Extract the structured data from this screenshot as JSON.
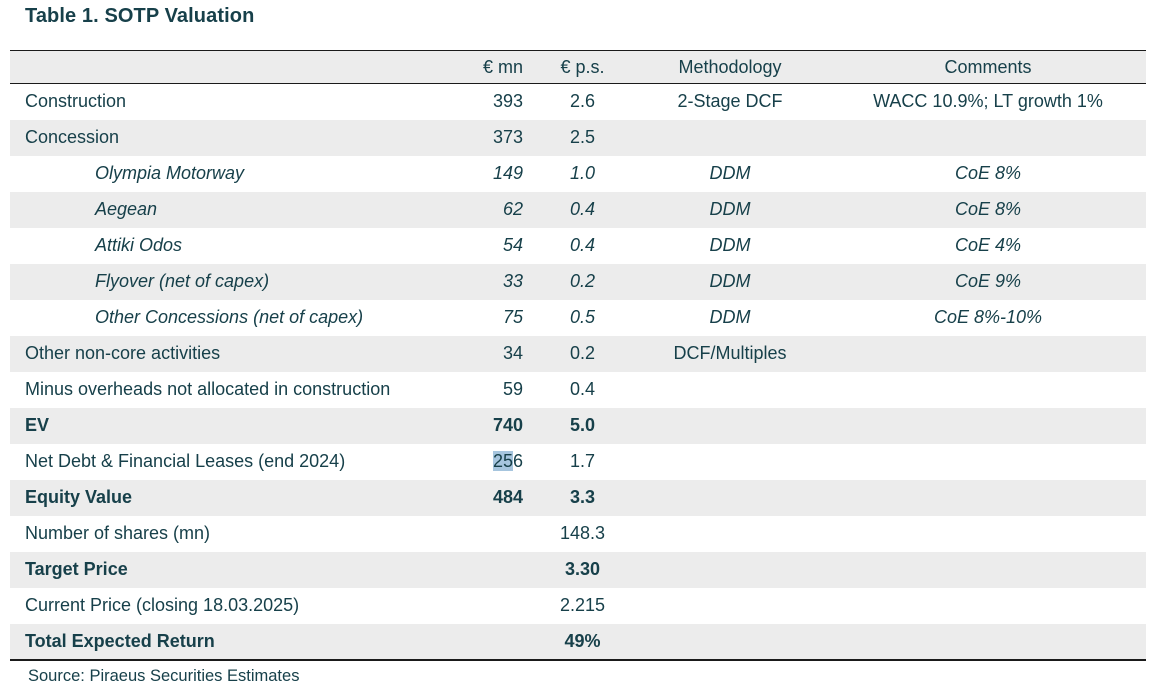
{
  "page": {
    "title": "Table 1. SOTP Valuation",
    "source_note": "Source: Piraeus Securities Estimates"
  },
  "colors": {
    "text": "#17404a",
    "row_shade": "#ececec",
    "selection_highlight": "#a6c5de",
    "border": "#1a1a1a"
  },
  "table": {
    "columns": [
      "",
      "€ mn",
      "€ p.s.",
      "Methodology",
      "Comments"
    ],
    "rows": [
      {
        "label": "Construction",
        "eur_mn": "393",
        "eur_ps": "2.6",
        "methodology": "2-Stage DCF",
        "comments": "WACC 10.9%; LT growth 1%"
      },
      {
        "label": "Concession",
        "eur_mn": "373",
        "eur_ps": "2.5",
        "methodology": "",
        "comments": ""
      },
      {
        "label": "Olympia Motorway",
        "eur_mn": "149",
        "eur_ps": "1.0",
        "methodology": "DDM",
        "comments": "CoE 8%",
        "italic": true,
        "indent": true
      },
      {
        "label": "Aegean",
        "eur_mn": "62",
        "eur_ps": "0.4",
        "methodology": "DDM",
        "comments": "CoE 8%",
        "italic": true,
        "indent": true
      },
      {
        "label": "Attiki Odos",
        "eur_mn": "54",
        "eur_ps": "0.4",
        "methodology": "DDM",
        "comments": "CoE 4%",
        "italic": true,
        "indent": true
      },
      {
        "label": "Flyover (net of capex)",
        "eur_mn": "33",
        "eur_ps": "0.2",
        "methodology": "DDM",
        "comments": "CoE 9%",
        "italic": true,
        "indent": true
      },
      {
        "label": "Other Concessions (net of capex)",
        "eur_mn": "75",
        "eur_ps": "0.5",
        "methodology": "DDM",
        "comments": "CoE 8%-10%",
        "italic": true,
        "indent": true
      },
      {
        "label": "Other non-core activities",
        "eur_mn": "34",
        "eur_ps": "0.2",
        "methodology": "DCF/Multiples",
        "comments": ""
      },
      {
        "label": "Minus overheads not allocated in construction",
        "eur_mn": "59",
        "eur_ps": "0.4",
        "methodology": "",
        "comments": ""
      },
      {
        "label": "EV",
        "eur_mn": "740",
        "eur_ps": "5.0",
        "methodology": "",
        "comments": "",
        "bold": true
      },
      {
        "label": "Net Debt & Financial Leases (end 2024)",
        "eur_mn": "256",
        "eur_ps": "1.7",
        "methodology": "",
        "comments": "",
        "selection": {
          "column": "eur_mn",
          "prefix_len": 2
        }
      },
      {
        "label": "Equity Value",
        "eur_mn": "484",
        "eur_ps": "3.3",
        "methodology": "",
        "comments": "",
        "bold": true
      },
      {
        "label": "Number of shares (mn)",
        "eur_mn": "",
        "eur_ps": "148.3",
        "methodology": "",
        "comments": ""
      },
      {
        "label": "Target Price",
        "eur_mn": "",
        "eur_ps": "3.30",
        "methodology": "",
        "comments": "",
        "bold": true
      },
      {
        "label": "Current Price (closing 18.03.2025)",
        "eur_mn": "",
        "eur_ps": "2.215",
        "methodology": "",
        "comments": ""
      },
      {
        "label": "Total Expected Return",
        "eur_mn": "",
        "eur_ps": "49%",
        "methodology": "",
        "comments": "",
        "bold": true
      }
    ]
  }
}
